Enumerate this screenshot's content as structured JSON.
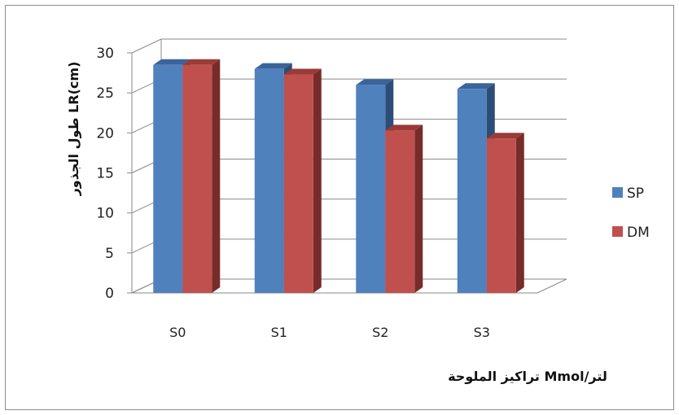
{
  "chart_data": {
    "type": "bar",
    "style": "3d-clustered-column",
    "categories": [
      "S0",
      "S1",
      "S2",
      "S3"
    ],
    "series": [
      {
        "name": "SP",
        "values": [
          28.5,
          28,
          26,
          25.5
        ],
        "color": "#4F81BD",
        "side_color": "#2C4D75",
        "top_color": "#3A649B"
      },
      {
        "name": "DM",
        "values": [
          28.5,
          27.3,
          20.3,
          19.3
        ],
        "color": "#C0504D",
        "side_color": "#772C2A",
        "top_color": "#9A3B38"
      }
    ],
    "xlabel": "تراكيز الملوحة Mmol/لتر",
    "ylabel": "طول الجذور LR(cm)",
    "ylim": [
      0,
      30
    ],
    "yticks": [
      0,
      5,
      10,
      15,
      20,
      25,
      30
    ],
    "grid": true,
    "legend_position": "right"
  }
}
